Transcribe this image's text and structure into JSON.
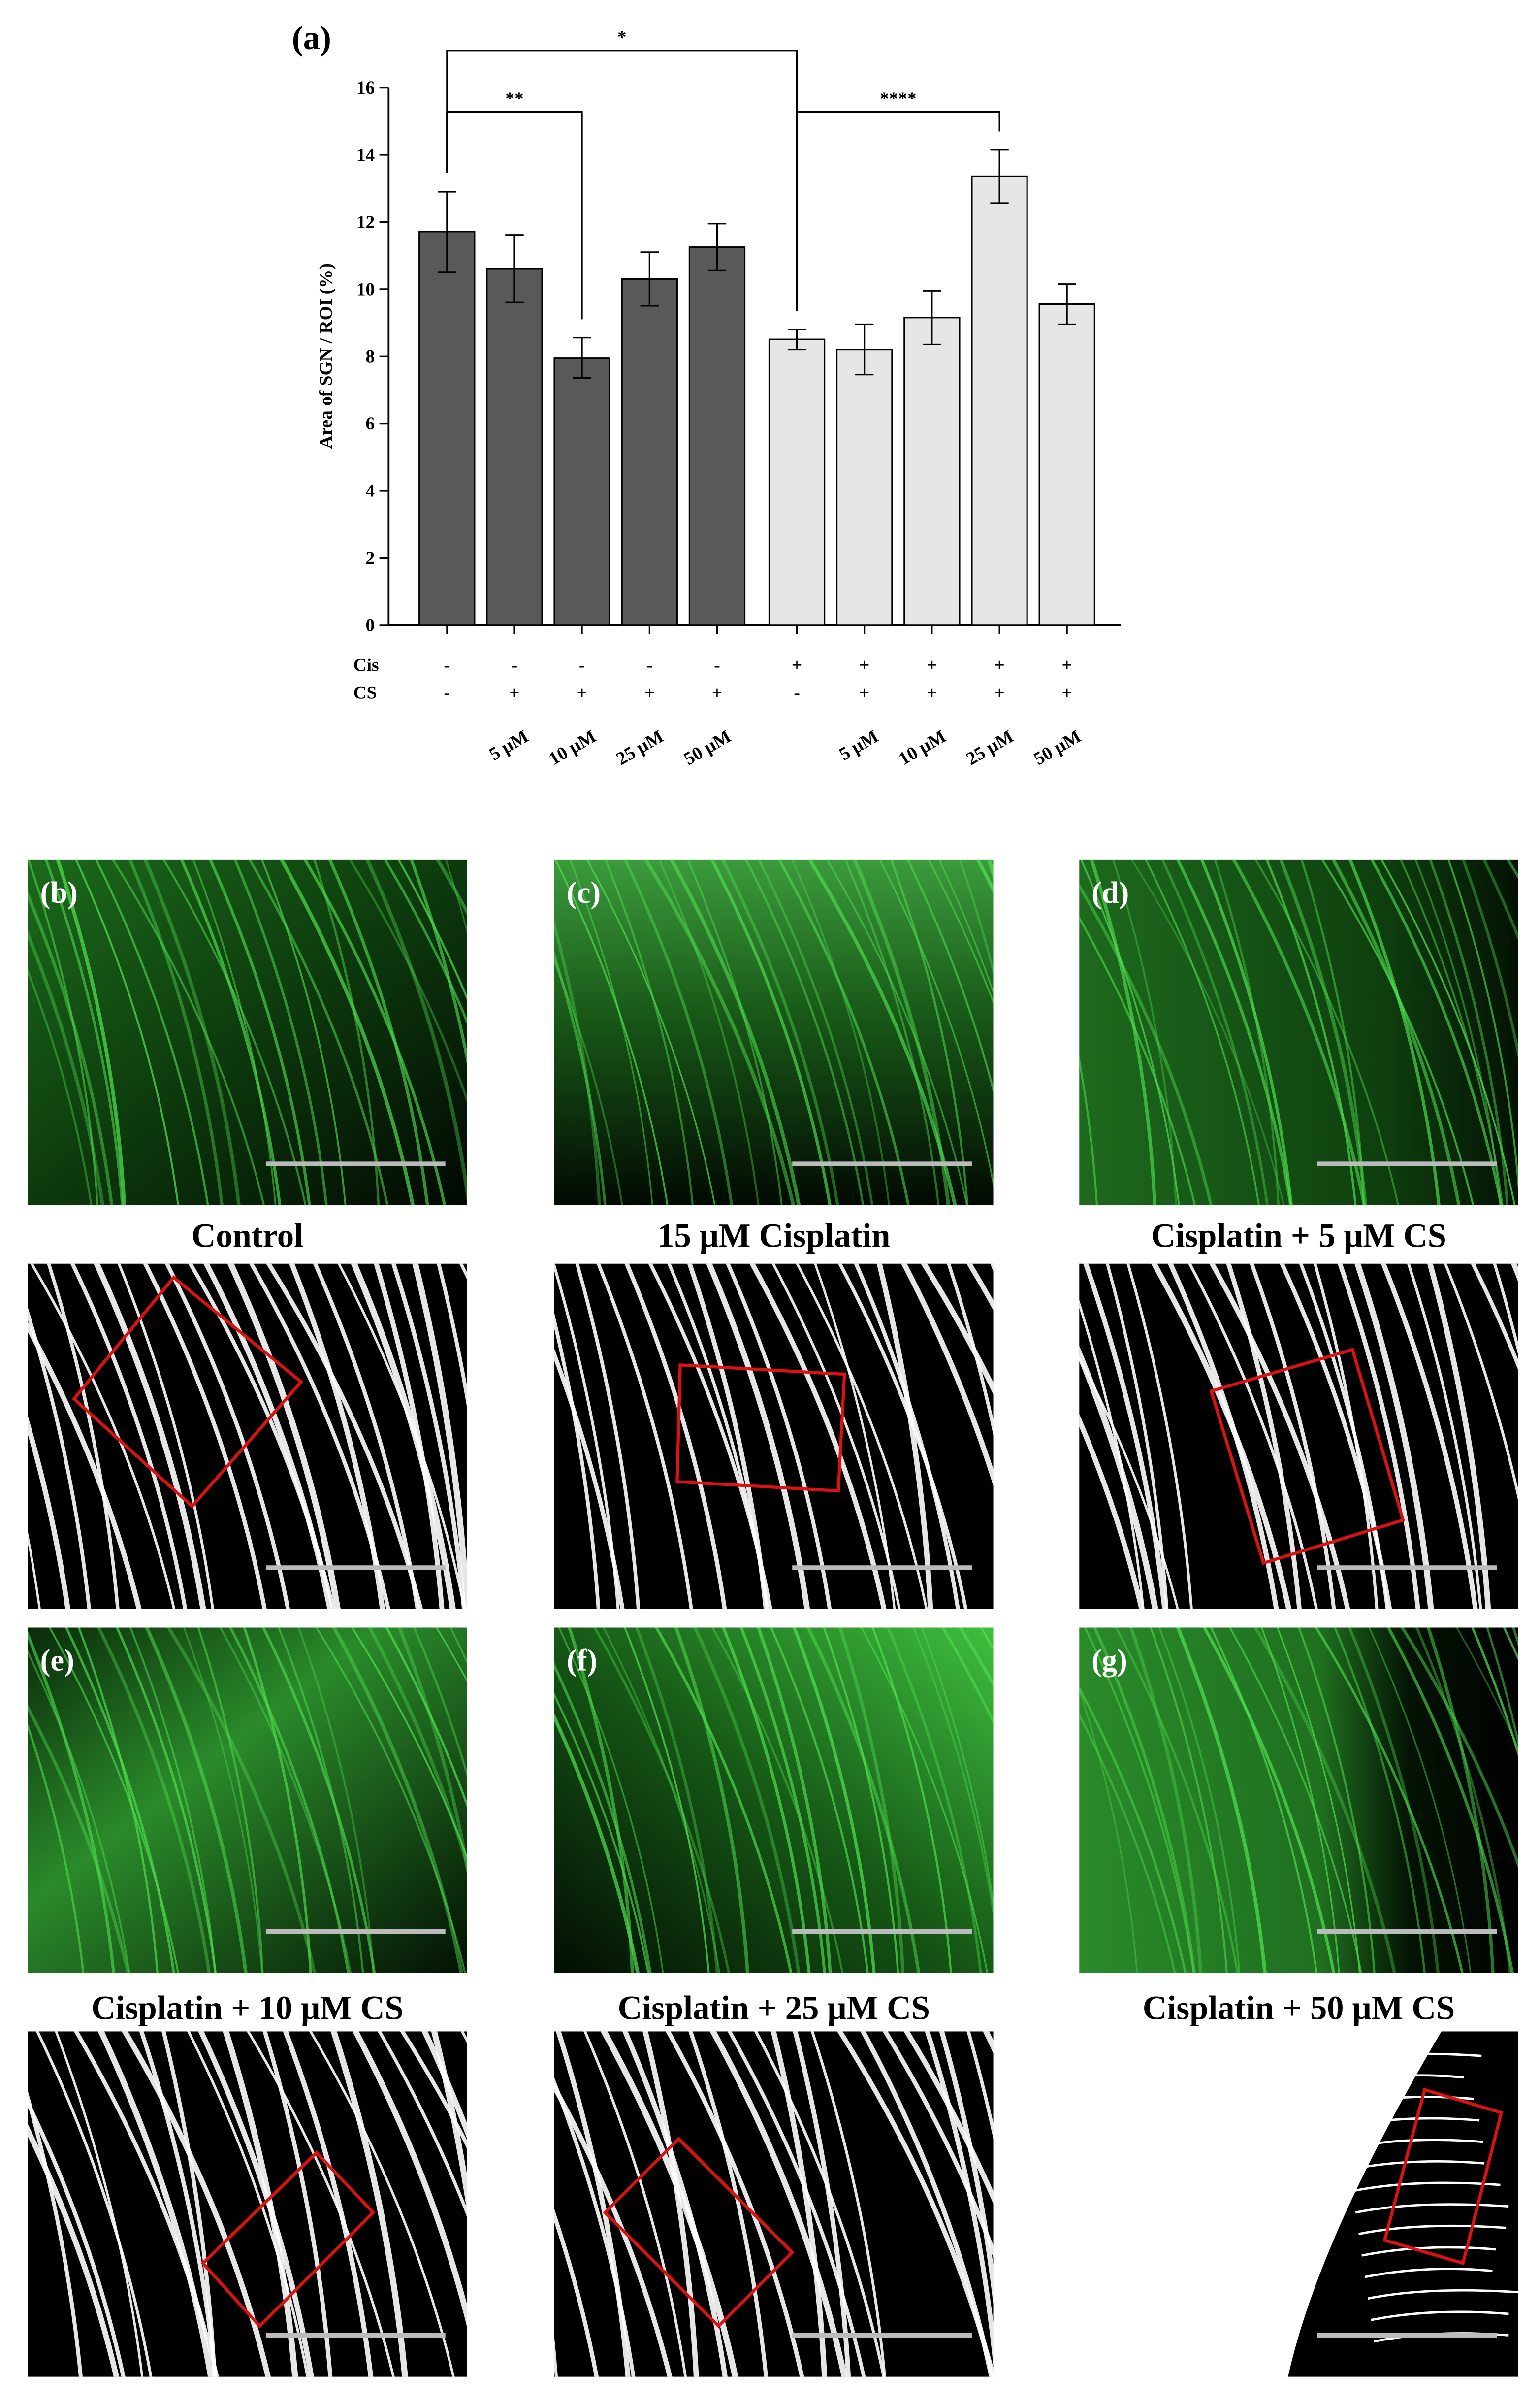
{
  "chart_data": {
    "type": "bar",
    "panel_label": "(a)",
    "y_label": "Area of SGN / ROI (%)",
    "categories": [
      null,
      "5 μM",
      "10 μM",
      "25 μM",
      "50 μM",
      null,
      "5 μM",
      "10 μM",
      "25 μM",
      "50 μM"
    ],
    "values": [
      11.7,
      10.6,
      7.95,
      10.3,
      11.25,
      8.5,
      8.2,
      9.15,
      13.35,
      9.55
    ],
    "errors": [
      1.2,
      1.0,
      0.6,
      0.8,
      0.7,
      0.3,
      0.75,
      0.8,
      0.8,
      0.6
    ],
    "colors": [
      "#595959",
      "#595959",
      "#595959",
      "#595959",
      "#595959",
      "#e6e6e6",
      "#e6e6e6",
      "#e6e6e6",
      "#e6e6e6",
      "#e6e6e6"
    ],
    "ylim": [
      0,
      16
    ],
    "yticks": [
      0,
      2,
      4,
      6,
      8,
      10,
      12,
      14,
      16
    ],
    "conditions": [
      {
        "name": "Cis",
        "values": [
          "-",
          "-",
          "-",
          "-",
          "-",
          "+",
          "+",
          "+",
          "+",
          "+"
        ]
      },
      {
        "name": "CS",
        "values": [
          "-",
          "+",
          "+",
          "+",
          "+",
          "-",
          "+",
          "+",
          "+",
          "+"
        ]
      }
    ],
    "annotations": [
      {
        "text": "*",
        "from": 0,
        "to": 5
      },
      {
        "text": "**",
        "from": 0,
        "to": 2
      },
      {
        "text": "****",
        "from": 5,
        "to": 8
      }
    ]
  },
  "panels": [
    {
      "label": "(b)",
      "caption": "Control"
    },
    {
      "label": "(c)",
      "caption": "15 μM Cisplatin"
    },
    {
      "label": "(d)",
      "caption": "Cisplatin + 5 μM CS"
    },
    {
      "label": "(e)",
      "caption": "Cisplatin + 10 μM CS"
    },
    {
      "label": "(f)",
      "caption": "Cisplatin + 25 μM CS"
    },
    {
      "label": "(g)",
      "caption": "Cisplatin + 50 μM CS"
    }
  ]
}
